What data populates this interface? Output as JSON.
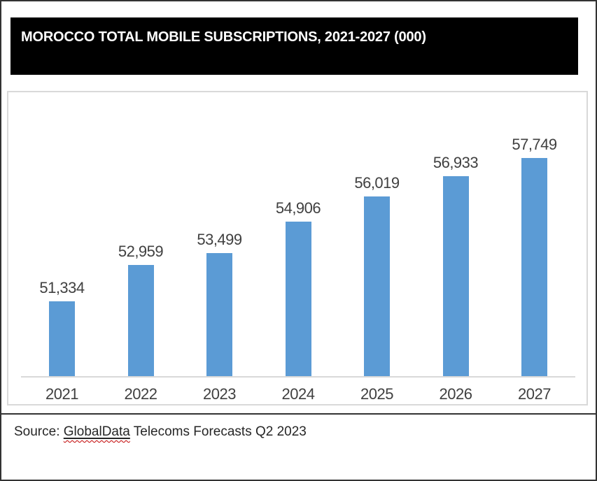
{
  "header": {
    "title": "MOROCCO TOTAL MOBILE SUBSCRIPTIONS, 2021-2027 (000)"
  },
  "footer": {
    "source_prefix": "Source: ",
    "source_link_text": "GlobalData",
    "source_suffix": " Telecoms Forecasts Q2 2023"
  },
  "colors": {
    "bar": "#5B9BD5",
    "title_bg": "#000000",
    "title_fg": "#FFFFFF",
    "axis_line": "#D9D9D9",
    "chart_border": "#D9D9D9",
    "label_text": "#404040",
    "source_text": "#262626",
    "spellcheck_squiggle": "#C00000",
    "outer_border": "#333333"
  },
  "chart_data": {
    "type": "bar",
    "title": "MOROCCO TOTAL MOBILE SUBSCRIPTIONS, 2021-2027 (000)",
    "categories": [
      "2021",
      "2022",
      "2023",
      "2024",
      "2025",
      "2026",
      "2027"
    ],
    "values": [
      51334,
      52959,
      53499,
      54906,
      56019,
      56933,
      57749
    ],
    "value_labels": [
      "51,334",
      "52,959",
      "53,499",
      "54,906",
      "56,019",
      "56,933",
      "57,749"
    ],
    "xlabel": "",
    "ylabel": "",
    "ylim": [
      48000,
      58800
    ],
    "grid": false,
    "legend": false,
    "data_labels": true,
    "bar_color": "#5B9BD5"
  }
}
